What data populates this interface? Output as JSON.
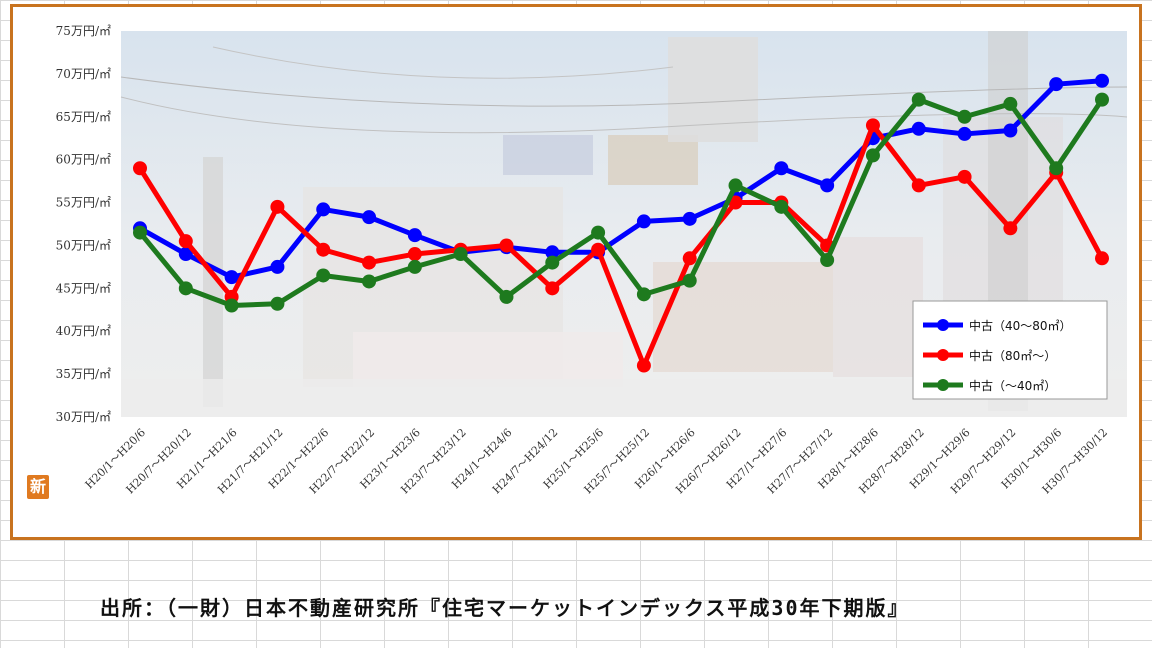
{
  "chart_data": {
    "type": "line",
    "categories": [
      "H20/1～H20/6",
      "H20/7～H20/12",
      "H21/1～H21/6",
      "H21/7～H21/12",
      "H22/1～H22/6",
      "H22/7～H22/12",
      "H23/1～H23/6",
      "H23/7～H23/12",
      "H24/1～H24/6",
      "H24/7～H24/12",
      "H25/1～H25/6",
      "H25/7～H25/12",
      "H26/1～H26/6",
      "H26/7～H26/12",
      "H27/1～H27/6",
      "H27/7～H27/12",
      "H28/1～H28/6",
      "H28/7～H28/12",
      "H29/1～H29/6",
      "H29/7～H29/12",
      "H30/1～H30/6",
      "H30/7～H30/12"
    ],
    "yticks": [
      "30万円/㎡",
      "35万円/㎡",
      "40万円/㎡",
      "45万円/㎡",
      "50万円/㎡",
      "55万円/㎡",
      "60万円/㎡",
      "65万円/㎡",
      "70万円/㎡",
      "75万円/㎡"
    ],
    "ylim": [
      30,
      75
    ],
    "grid": false,
    "legend_position": "bottom-right",
    "series": [
      {
        "name": "中古（40～80㎡）",
        "color": "#0000ff",
        "values": [
          52.0,
          49.0,
          46.3,
          47.5,
          54.2,
          53.3,
          51.2,
          49.2,
          49.8,
          49.2,
          49.2,
          52.8,
          53.1,
          55.5,
          59.0,
          57.0,
          62.5,
          63.6,
          63.0,
          63.4,
          68.8,
          69.2
        ]
      },
      {
        "name": "中古（80㎡～）",
        "color": "#ff0000",
        "values": [
          59.0,
          50.5,
          44.0,
          54.5,
          49.5,
          48.0,
          49.0,
          49.5,
          50.0,
          45.0,
          49.5,
          36.0,
          48.5,
          55.0,
          55.0,
          50.0,
          64.0,
          57.0,
          58.0,
          52.0,
          58.5,
          48.5
        ]
      },
      {
        "name": "中古（～40㎡）",
        "color": "#1e7a1e",
        "values": [
          51.5,
          45.0,
          43.0,
          43.2,
          46.5,
          45.8,
          47.5,
          49.0,
          44.0,
          48.0,
          51.5,
          44.3,
          45.9,
          57.0,
          54.5,
          48.3,
          60.5,
          67.0,
          65.0,
          66.5,
          59.0,
          67.0
        ]
      }
    ]
  },
  "badge": "新",
  "source": "出所：（一財）日本不動産研究所『住宅マーケットインデックス平成30年下期版』"
}
